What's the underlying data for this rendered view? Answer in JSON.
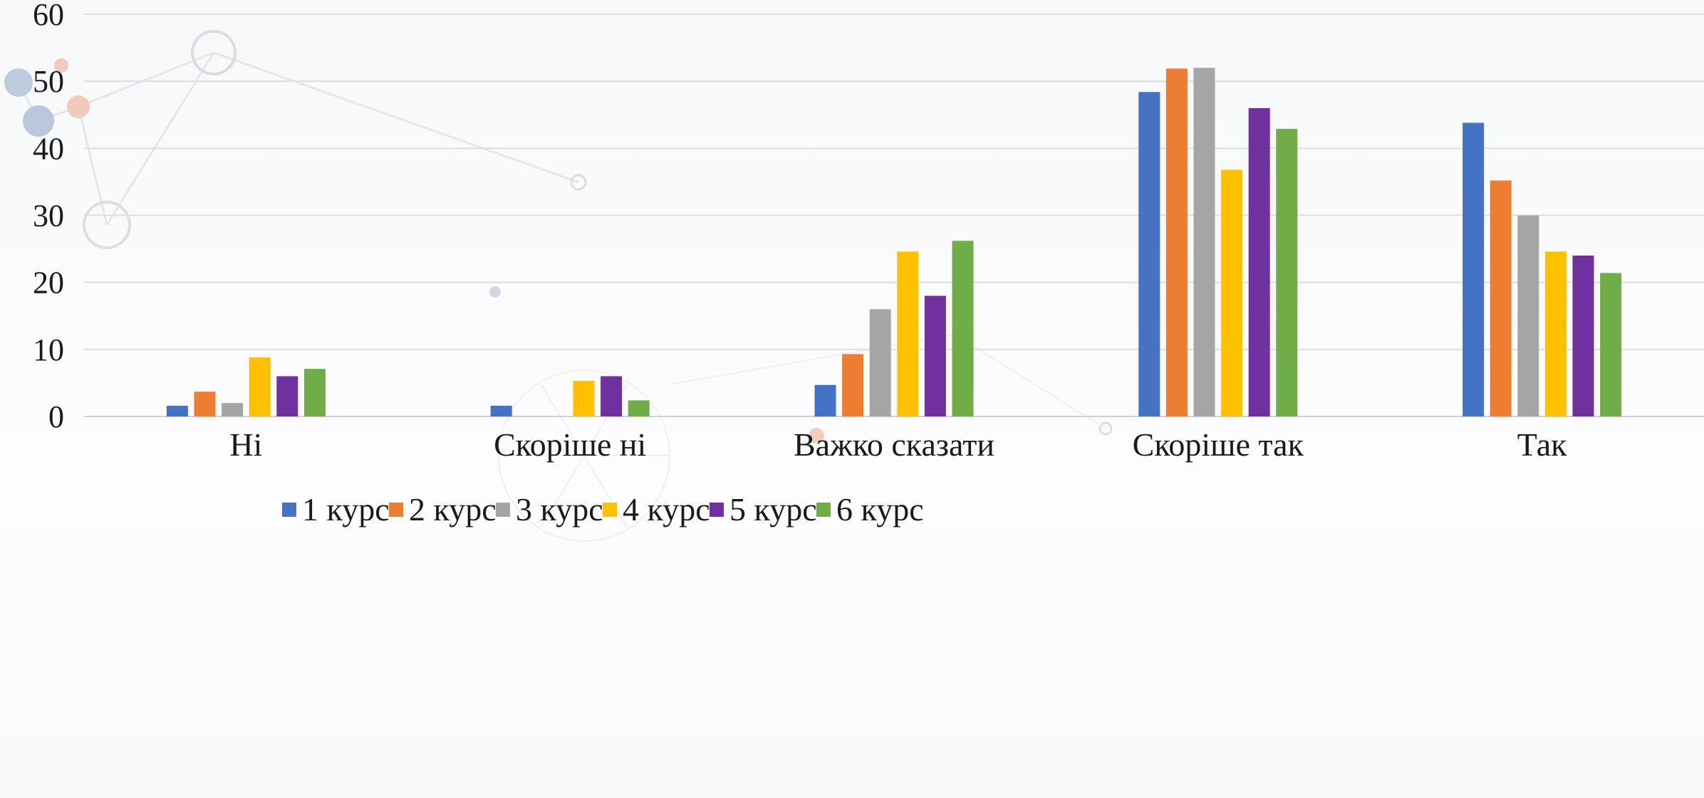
{
  "chart_data": {
    "type": "bar",
    "title": "",
    "xlabel": "",
    "ylabel": "",
    "ylim": [
      0,
      60
    ],
    "yticks": [
      0,
      10,
      20,
      30,
      40,
      50,
      60
    ],
    "grid": true,
    "legend_position": "bottom",
    "categories": [
      "Ні",
      "Скоріше ні",
      "Важко сказати",
      "Скоріше так",
      "Так"
    ],
    "series": [
      {
        "name": "1 курс",
        "color": "#4472C4",
        "values": [
          1.6,
          1.6,
          4.7,
          48.4,
          43.8
        ]
      },
      {
        "name": "2 курс",
        "color": "#ED7D31",
        "values": [
          3.7,
          0,
          9.3,
          51.9,
          35.2
        ]
      },
      {
        "name": "3 курс",
        "color": "#A5A5A5",
        "values": [
          2.0,
          0,
          16.0,
          52.0,
          30.0
        ]
      },
      {
        "name": "4 курс",
        "color": "#FFC000",
        "values": [
          8.8,
          5.3,
          24.6,
          36.8,
          24.6
        ]
      },
      {
        "name": "5 курс",
        "color": "#7030A0",
        "values": [
          6.0,
          6.0,
          18.0,
          46.0,
          24.0
        ]
      },
      {
        "name": "6 курс",
        "color": "#70AD47",
        "values": [
          7.1,
          2.4,
          26.2,
          42.9,
          21.4
        ]
      }
    ]
  }
}
